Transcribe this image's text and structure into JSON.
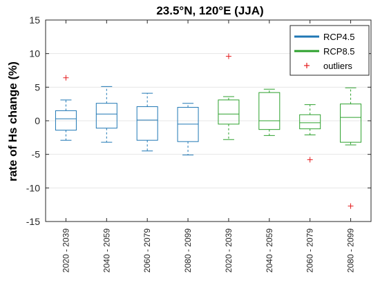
{
  "chart_data": {
    "type": "box",
    "title": "23.5°N, 120°E (JJA)",
    "ylabel": "rate of Hs change (%)",
    "ylim": [
      -15,
      15
    ],
    "yticks": [
      -15,
      -10,
      -5,
      0,
      5,
      10,
      15
    ],
    "grid": "horizontal",
    "legend_position": "top-right",
    "categories": [
      "2020 - 2039",
      "2040 - 2059",
      "2060 - 2079",
      "2080 - 2099",
      "2020 - 2039",
      "2040 - 2059",
      "2060 - 2079",
      "2080 - 2099"
    ],
    "series": [
      {
        "name": "RCP4.5",
        "color": "#1f77b4",
        "boxes": [
          {
            "whisker_low": -2.9,
            "q1": -1.4,
            "median": 0.3,
            "q3": 1.5,
            "whisker_high": 3.1,
            "outliers": [
              6.4
            ]
          },
          {
            "whisker_low": -3.2,
            "q1": -1.1,
            "median": 1.0,
            "q3": 2.6,
            "whisker_high": 5.1,
            "outliers": []
          },
          {
            "whisker_low": -4.5,
            "q1": -2.9,
            "median": 0.1,
            "q3": 2.1,
            "whisker_high": 4.1,
            "outliers": []
          },
          {
            "whisker_low": -5.1,
            "q1": -3.1,
            "median": -0.5,
            "q3": 2.0,
            "whisker_high": 2.6,
            "outliers": []
          }
        ]
      },
      {
        "name": "RCP8.5",
        "color": "#2ca02c",
        "boxes": [
          {
            "whisker_low": -2.8,
            "q1": -0.5,
            "median": 1.0,
            "q3": 3.1,
            "whisker_high": 3.6,
            "outliers": [
              9.6
            ]
          },
          {
            "whisker_low": -2.2,
            "q1": -1.3,
            "median": 0.0,
            "q3": 4.2,
            "whisker_high": 4.7,
            "outliers": []
          },
          {
            "whisker_low": -2.1,
            "q1": -1.2,
            "median": -0.3,
            "q3": 0.9,
            "whisker_high": 2.4,
            "outliers": [
              -5.8
            ]
          },
          {
            "whisker_low": -3.6,
            "q1": -3.2,
            "median": 0.5,
            "q3": 2.5,
            "whisker_high": 4.9,
            "outliers": [
              -12.7
            ]
          }
        ]
      }
    ],
    "legend": {
      "entries": [
        {
          "label": "RCP4.5",
          "color": "#1f77b4",
          "symbol": "line"
        },
        {
          "label": "RCP8.5",
          "color": "#2ca02c",
          "symbol": "line"
        },
        {
          "label": "outliers",
          "color": "#e41a1c",
          "symbol": "plus"
        }
      ]
    }
  }
}
